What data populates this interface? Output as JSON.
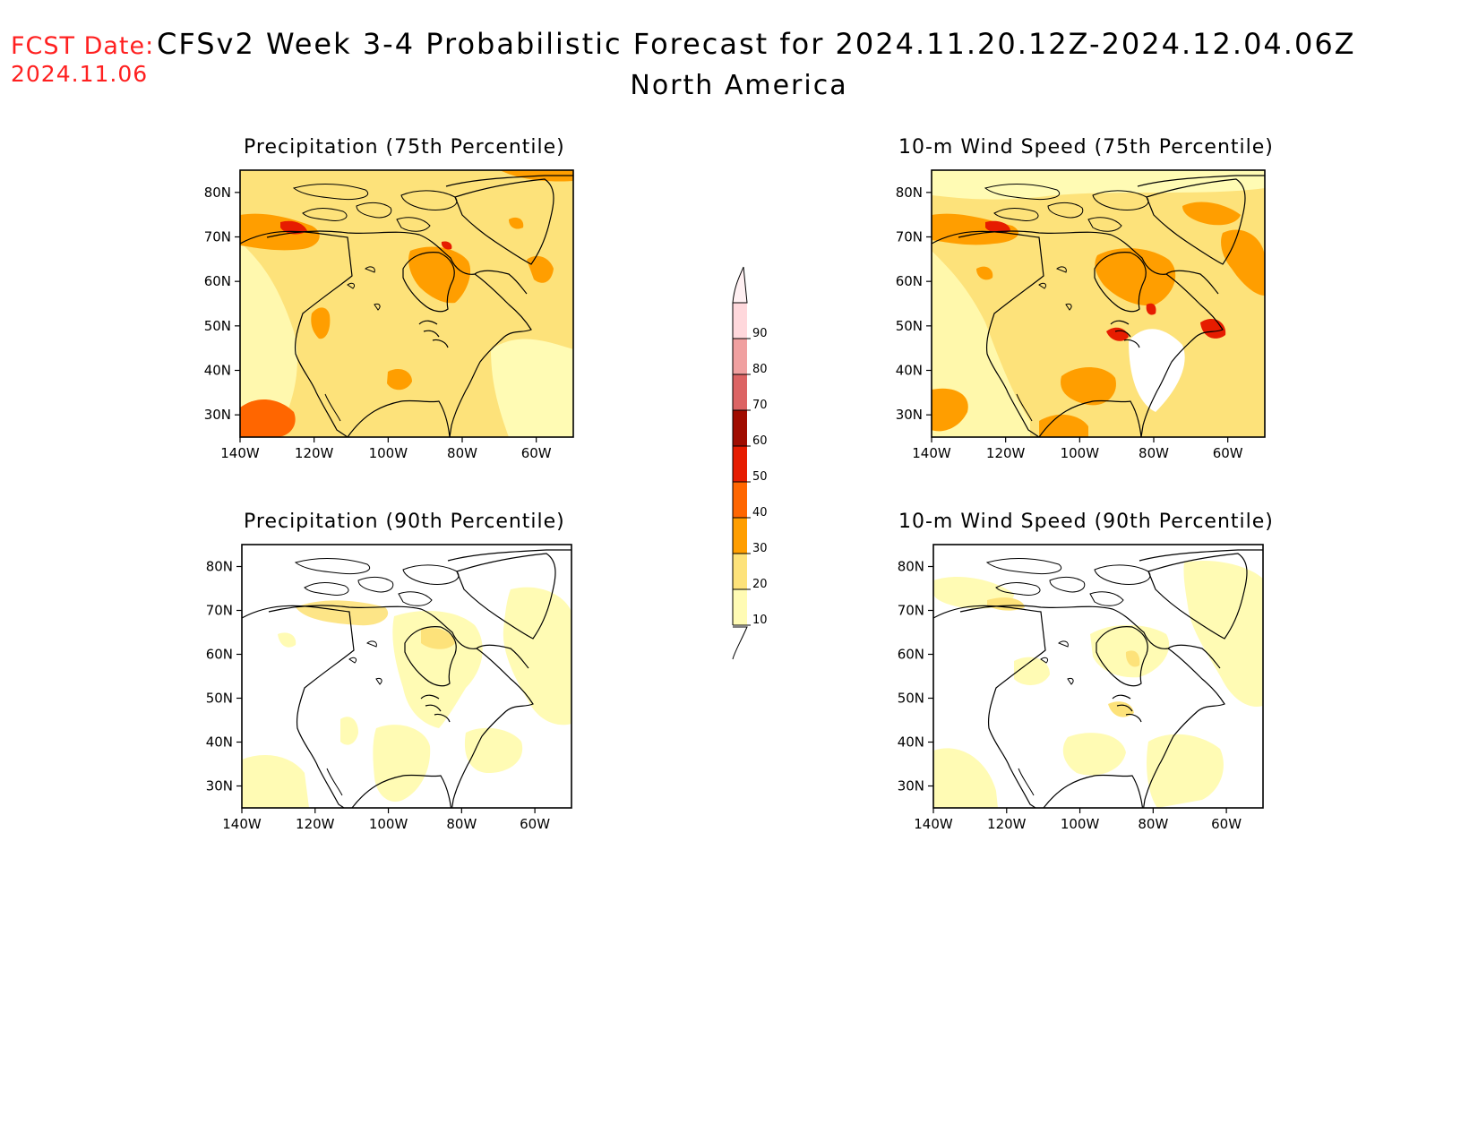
{
  "header": {
    "fcst_label": "FCST Date:",
    "fcst_date": "2024.11.06",
    "title": "CFSv2 Week 3-4 Probabilistic Forecast for 2024.11.20.12Z-2024.12.04.06Z",
    "subtitle": "North America"
  },
  "panels": [
    {
      "title": "Precipitation (75th Percentile)"
    },
    {
      "title": "10-m Wind Speed (75th Percentile)"
    },
    {
      "title": "Precipitation (90th Percentile)"
    },
    {
      "title": "10-m Wind Speed (90th Percentile)"
    }
  ],
  "axes": {
    "lat_ticks": [
      "30N",
      "40N",
      "50N",
      "60N",
      "70N",
      "80N"
    ],
    "lon_ticks": [
      "140W",
      "120W",
      "100W",
      "80W",
      "60W"
    ]
  },
  "colorbar": {
    "levels": [
      "10",
      "20",
      "30",
      "40",
      "50",
      "60",
      "70",
      "80",
      "90"
    ],
    "colors": [
      "#fffbb4",
      "#fde27a",
      "#ff9e00",
      "#ff6600",
      "#e61c00",
      "#a00c00",
      "#dc6464",
      "#f0a0a0",
      "#ffd8dc",
      "#fff0f2"
    ]
  }
}
